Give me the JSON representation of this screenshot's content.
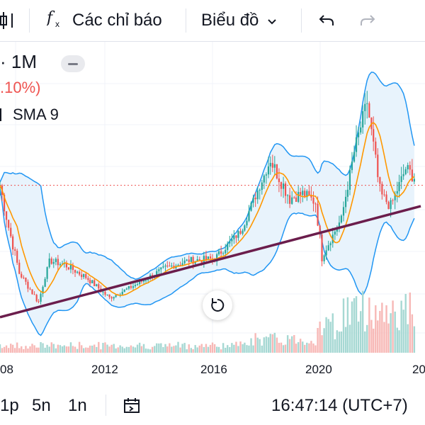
{
  "toolbar": {
    "indicators_label": "Các chỉ báo",
    "chart_type_label": "Biểu đồ",
    "icons": [
      "candles-icon",
      "fx-icon",
      "chevron-down-icon",
      "undo-icon",
      "redo-icon"
    ]
  },
  "legend": {
    "interval": "· 1M",
    "change": ".10%)",
    "indicator": "SMA 9"
  },
  "colors": {
    "bull": "#26a69a",
    "bear": "#ef5350",
    "band": "#2196f3",
    "band_fill": "#e8f3fc",
    "sma": "#ff9800",
    "trendline": "#6b1d4c",
    "price_line": "#ef5350"
  },
  "chart_data": {
    "type": "candlestick",
    "interval": "1M",
    "x_tick_labels": [
      "08",
      "2012",
      "2016",
      "2020",
      "20"
    ],
    "indicators": [
      "SMA 9",
      "Bollinger Bands"
    ],
    "price_series": [
      {
        "date": "2007-09",
        "close": 200
      },
      {
        "date": "2008-01",
        "close": 150
      },
      {
        "date": "2008-06",
        "close": 95
      },
      {
        "date": "2009-03",
        "close": 60
      },
      {
        "date": "2009-08",
        "close": 110
      },
      {
        "date": "2010-03",
        "close": 105
      },
      {
        "date": "2011-01",
        "close": 90
      },
      {
        "date": "2011-12",
        "close": 65
      },
      {
        "date": "2013-01",
        "close": 82
      },
      {
        "date": "2014-01",
        "close": 100
      },
      {
        "date": "2015-01",
        "close": 110
      },
      {
        "date": "2016-01",
        "close": 112
      },
      {
        "date": "2017-01",
        "close": 145
      },
      {
        "date": "2018-03",
        "close": 230
      },
      {
        "date": "2018-12",
        "close": 185
      },
      {
        "date": "2019-06",
        "close": 190
      },
      {
        "date": "2019-12",
        "close": 180
      },
      {
        "date": "2020-03",
        "close": 115
      },
      {
        "date": "2020-12",
        "close": 160
      },
      {
        "date": "2021-06",
        "close": 240
      },
      {
        "date": "2021-12",
        "close": 300
      },
      {
        "date": "2022-06",
        "close": 190
      },
      {
        "date": "2022-11",
        "close": 175
      },
      {
        "date": "2023-06",
        "close": 220
      },
      {
        "date": "2023-10",
        "close": 210
      }
    ],
    "trendline": [
      {
        "date": "2007-09",
        "value": 42
      },
      {
        "date": "2024-01",
        "value": 175
      }
    ],
    "last_price_level": 200
  },
  "bottom": {
    "range_1p": "1p",
    "range_5n": "5n",
    "range_1n": "1n",
    "time": "16:47:14 (UTC+7)"
  }
}
